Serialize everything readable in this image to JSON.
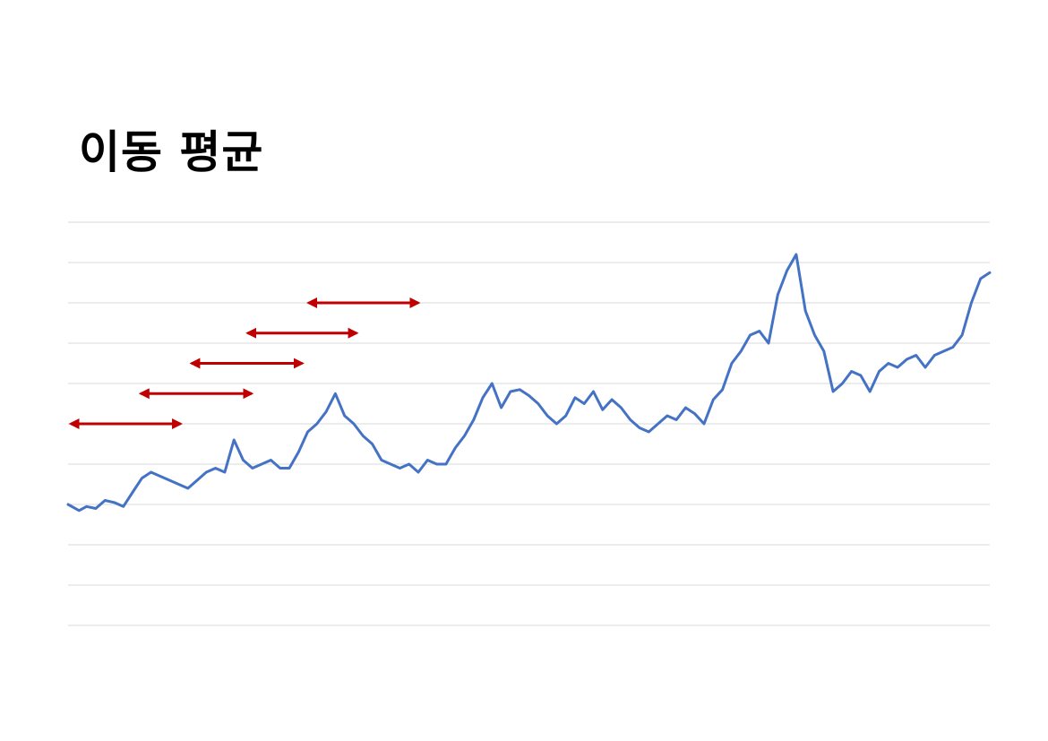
{
  "page": {
    "title": "이동 평균"
  },
  "colors": {
    "line": "#4472C4",
    "arrows": "#C00000",
    "grid": "#D9D9D9"
  },
  "chart_data": {
    "type": "line",
    "title": "이동 평균",
    "xlabel": "",
    "ylabel": "",
    "ylim": [
      0,
      100
    ],
    "xlim": [
      0,
      100
    ],
    "grid": true,
    "legend": "none",
    "series": [
      {
        "x": [
          0,
          1.2,
          2,
          3,
          4,
          5,
          6,
          7,
          8,
          9,
          10,
          11,
          12,
          13,
          14,
          15,
          16,
          17,
          18,
          19,
          20,
          21,
          22,
          23,
          24,
          25,
          26,
          27,
          28,
          29,
          30,
          31,
          32,
          33,
          34,
          35,
          36,
          37,
          38,
          39,
          40,
          41,
          42,
          43,
          44,
          45,
          46,
          47,
          48,
          49,
          50,
          51,
          52,
          53,
          54,
          55,
          56,
          57,
          58,
          59,
          60,
          61,
          62,
          63,
          64,
          65,
          66,
          67,
          68,
          69,
          70,
          71,
          72,
          73,
          74,
          75,
          76,
          77,
          78,
          79,
          80,
          81,
          82,
          83,
          84,
          85,
          86,
          87,
          88,
          89,
          90,
          91,
          92,
          93,
          94,
          95,
          96,
          97,
          98,
          99,
          100
        ],
        "y": [
          30,
          28.5,
          29.5,
          29,
          31,
          30.5,
          29.5,
          33,
          36.5,
          38,
          37,
          36,
          35,
          34,
          36,
          38,
          39,
          38,
          46,
          41,
          39,
          40,
          41,
          39,
          39,
          43,
          48,
          50,
          53,
          57.5,
          52,
          50,
          47,
          45,
          41,
          40,
          39,
          40,
          38,
          41,
          40,
          40,
          44,
          47,
          51,
          56.5,
          60,
          54,
          58,
          58.5,
          57,
          55,
          52,
          50,
          52,
          56.5,
          55,
          58,
          53.5,
          56,
          54,
          51,
          49,
          48,
          50,
          52,
          51,
          54,
          52.5,
          50,
          56,
          58.5,
          65,
          68,
          72,
          73,
          70,
          82,
          88,
          92,
          78,
          72,
          68,
          58,
          60,
          63,
          62,
          58,
          63,
          65,
          64,
          66,
          67,
          64,
          67,
          68,
          69,
          72,
          80,
          86,
          87.5
        ]
      }
    ],
    "arrows": [
      {
        "x1": 0,
        "x2": 12.5,
        "y": 50
      },
      {
        "x1": 7.6,
        "x2": 20.2,
        "y": 57.5
      },
      {
        "x1": 13.1,
        "x2": 25.7,
        "y": 65
      },
      {
        "x1": 19.2,
        "x2": 31.6,
        "y": 72.5
      },
      {
        "x1": 25.8,
        "x2": 38.3,
        "y": 80
      }
    ]
  }
}
